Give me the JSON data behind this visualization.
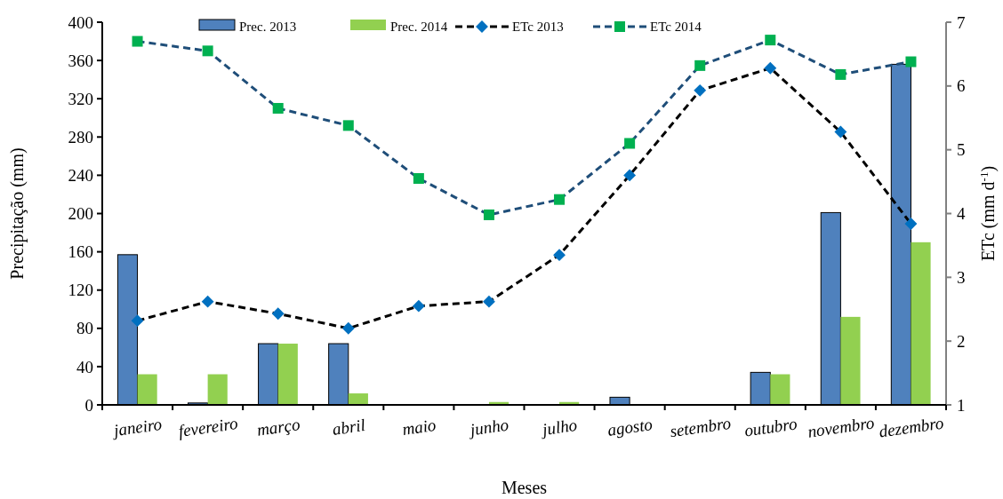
{
  "chart_data": {
    "type": "bar",
    "xlabel": "Meses",
    "ylabel": "Precipitação (mm)",
    "y2label": "ETc  (mm d$^{-1}$)",
    "categories": [
      "janeiro",
      "fevereiro",
      "março",
      "abril",
      "maio",
      "junho",
      "julho",
      "agosto",
      "setembro",
      "outubro",
      "novembro",
      "dezembro"
    ],
    "series": [
      {
        "name": "Prec. 2013",
        "color": "#4f81bd",
        "values": [
          157,
          2,
          64,
          64,
          0,
          0,
          0,
          8,
          0,
          34,
          201,
          356
        ]
      },
      {
        "name": "Prec. 2014",
        "color": "#92d050",
        "values": [
          32,
          32,
          64,
          12,
          0,
          3,
          3,
          0,
          0,
          32,
          92,
          170
        ]
      },
      {
        "name": "ETc 2013",
        "type": "line",
        "axis": "y2",
        "color": "#000000",
        "marker": "diamond",
        "colors": [
          "#0070c0",
          "#0070c0",
          "#0070c0",
          "#0070c0",
          "#0070c0",
          "#0070c0",
          "#0070c0",
          "#0070c0",
          "#0070c0",
          "#0070c0",
          "#0070c0",
          "#0070c0"
        ],
        "line_style": "dashed",
        "values": [
          2.32,
          2.62,
          2.43,
          2.2,
          2.55,
          2.62,
          3.35,
          4.6,
          5.93,
          6.28,
          5.28,
          3.84
        ]
      },
      {
        "name": "ETc 2014",
        "type": "line",
        "axis": "y2",
        "color": "#1f4e79",
        "marker": "square",
        "colors": [
          "#00b050",
          "#00b050",
          "#00b050",
          "#00b050",
          "#00b050",
          "#00b050",
          "#00b050",
          "#00b050",
          "#00b050",
          "#00b050",
          "#00b050",
          "#00b050"
        ],
        "line_style": "dashed",
        "values": [
          6.7,
          6.55,
          5.65,
          5.38,
          4.55,
          3.98,
          4.22,
          5.1,
          6.32,
          6.72,
          6.18,
          6.38
        ]
      }
    ],
    "ylim": [
      0,
      400
    ],
    "yticks": [
      0,
      40,
      80,
      120,
      160,
      200,
      240,
      280,
      320,
      360,
      400
    ],
    "y2lim": [
      1,
      7
    ],
    "y2ticks": [
      1,
      2,
      3,
      4,
      5,
      6,
      7
    ],
    "legend": "top",
    "grid": false
  }
}
